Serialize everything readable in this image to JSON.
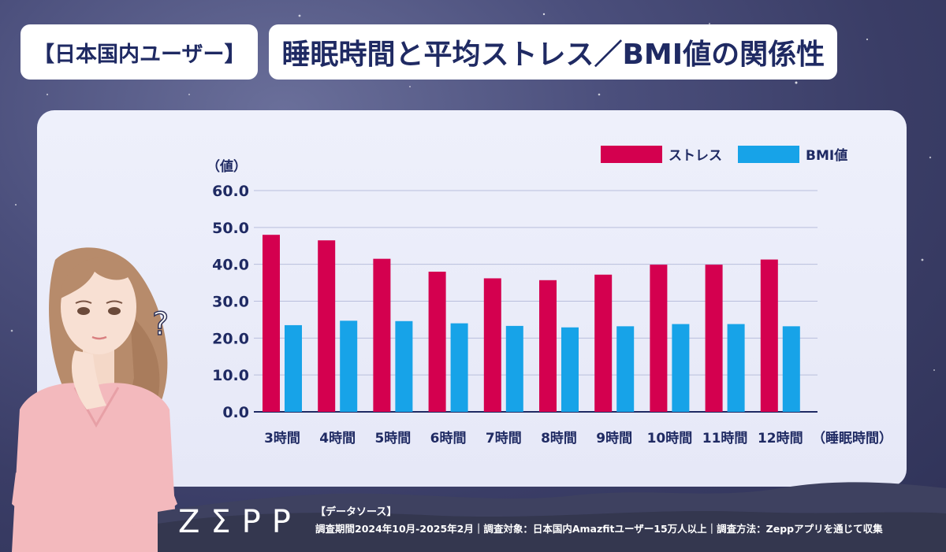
{
  "title": {
    "bracket_label": "【日本国内ユーザー】",
    "main": "睡眠時間と平均ストレス／BMI値の関係性"
  },
  "colors": {
    "stress": "#d4004f",
    "bmi": "#17a3e8",
    "axis_text": "#1f2a63",
    "grid": "#b9bedc"
  },
  "chart_data": {
    "type": "bar",
    "categories": [
      "3時間",
      "4時間",
      "5時間",
      "6時間",
      "7時間",
      "8時間",
      "9時間",
      "10時間",
      "11時間",
      "12時間"
    ],
    "series": [
      {
        "name": "ストレス",
        "values": [
          48.0,
          46.5,
          41.5,
          38.0,
          36.2,
          35.7,
          37.2,
          39.9,
          39.9,
          41.3
        ]
      },
      {
        "name": "BMI値",
        "values": [
          23.5,
          24.7,
          24.6,
          24.0,
          23.3,
          22.9,
          23.2,
          23.8,
          23.8,
          23.2
        ]
      }
    ],
    "yticks": [
      "0.0",
      "10.0",
      "20.0",
      "30.0",
      "40.0",
      "50.0",
      "60.0"
    ],
    "ylim": [
      0,
      60
    ],
    "ylabel": "（値）",
    "xlabel": "（睡眠時間）",
    "legend_position": "top-right"
  },
  "footer": {
    "logo": "ZΣPP",
    "source_title": "【データソース】",
    "source_line": "調査期間2024年10月-2025年2月｜調査対象：日本国内Amazfitユーザー15万人以上｜調査方法：Zeppアプリを通じて収集"
  },
  "illustration": {
    "question_mark": "?"
  }
}
